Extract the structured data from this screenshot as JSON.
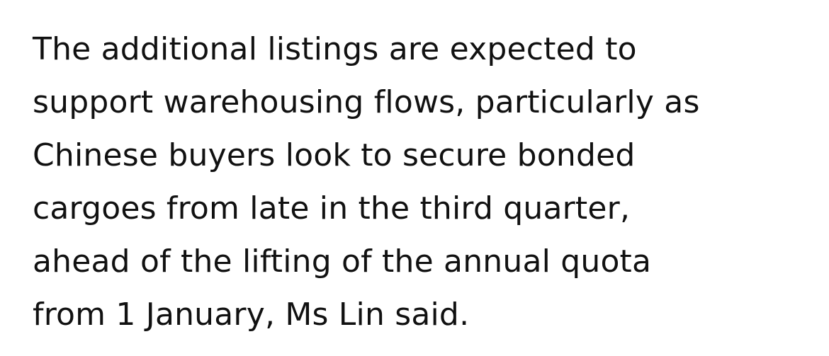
{
  "article": {
    "lines": [
      "The additional listings are expected to",
      "support warehousing flows, particularly as",
      "Chinese buyers look to secure bonded",
      "cargoes from late in the third quarter,",
      "ahead of the lifting of the annual quota",
      "from 1 January, Ms Lin said."
    ]
  }
}
